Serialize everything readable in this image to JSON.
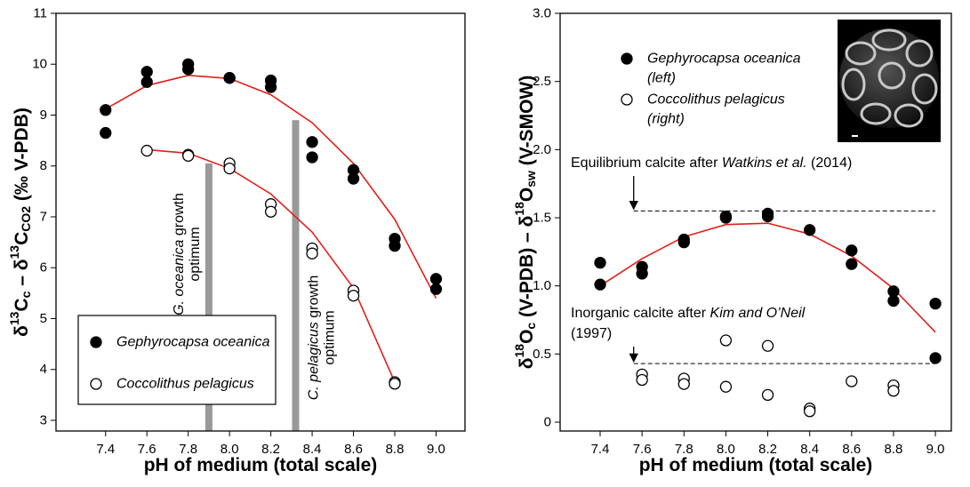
{
  "chart_data": [
    {
      "type": "scatter",
      "xlabel": "pH of medium (total scale)",
      "ylabel": [
        "δ",
        "13",
        "C",
        "c",
        " – δ",
        "13",
        "C",
        "CO2",
        " (‰ V-PDB)"
      ],
      "xlim": [
        7.16,
        9.14
      ],
      "ylim": [
        2.79,
        11
      ],
      "xticks": [
        7.4,
        7.6,
        7.8,
        {
          "value": 8,
          "label": "8.0"
        },
        8.2,
        8.4,
        8.6,
        8.8,
        {
          "value": 9,
          "label": "9.0"
        }
      ],
      "yticks": [
        3,
        4,
        5,
        6,
        7,
        8,
        9,
        10,
        11
      ],
      "series": [
        {
          "name": "Gephyrocapsa oceanica",
          "marker": "filled",
          "color": "#000000",
          "x": [
            7.4,
            7.4,
            7.6,
            7.6,
            7.8,
            7.8,
            8.0,
            8.0,
            8.2,
            8.2,
            8.4,
            8.4,
            8.6,
            8.6,
            8.8,
            8.8,
            9.0,
            9.0
          ],
          "values": [
            9.1,
            8.65,
            9.85,
            9.65,
            10.0,
            9.9,
            9.73,
            9.73,
            9.68,
            9.55,
            8.47,
            8.17,
            7.92,
            7.75,
            6.57,
            6.43,
            5.78,
            5.58
          ]
        },
        {
          "name": "Coccolithus pelagicus",
          "marker": "open",
          "color": "#000000",
          "x": [
            7.6,
            7.8,
            7.8,
            8.0,
            8.0,
            8.2,
            8.2,
            8.4,
            8.4,
            8.6,
            8.6,
            8.8,
            8.8
          ],
          "values": [
            8.3,
            8.22,
            8.2,
            8.05,
            7.95,
            7.25,
            7.1,
            6.38,
            6.28,
            5.55,
            5.45,
            3.75,
            3.72
          ]
        }
      ],
      "fits": [
        {
          "color": "#e0201b",
          "x": [
            7.4,
            7.6,
            7.8,
            8.0,
            8.2,
            8.4,
            8.6,
            8.8,
            9.0
          ],
          "values": [
            9.12,
            9.58,
            9.78,
            9.72,
            9.4,
            8.85,
            8.05,
            6.95,
            5.4
          ]
        },
        {
          "color": "#e0201b",
          "x": [
            7.6,
            7.8,
            8.0,
            8.2,
            8.4,
            8.6,
            8.8
          ],
          "values": [
            8.32,
            8.25,
            7.95,
            7.45,
            6.7,
            5.6,
            3.75
          ]
        }
      ],
      "bands": [
        {
          "x": 7.9,
          "top": 8.05,
          "color": "#999999",
          "label": [
            [
              {
                "text": "G. oceanica",
                "italic": true
              },
              {
                "text": " growth"
              }
            ],
            [
              {
                "text": "optimum"
              }
            ]
          ]
        },
        {
          "x": 8.32,
          "top": 8.9,
          "color": "#999999",
          "label": [
            [
              {
                "text": "C. pelagicus",
                "italic": true
              },
              {
                "text": " growth"
              }
            ],
            [
              {
                "text": "optimum"
              }
            ]
          ]
        }
      ],
      "legend": {
        "position": "lower left",
        "frame": true
      }
    },
    {
      "type": "scatter",
      "xlabel": "pH of medium (total scale)",
      "ylabel": [
        "δ",
        "18",
        "O",
        "c",
        " (V-PDB)  –  δ",
        "18",
        "O",
        "sw",
        " (V-SMOW)"
      ],
      "xlim": [
        7.209,
        9.076
      ],
      "ylim": [
        -0.065,
        3.0
      ],
      "xticks": [
        7.4,
        7.6,
        7.8,
        {
          "value": 8,
          "label": "8.0"
        },
        8.2,
        8.4,
        8.6,
        8.8,
        {
          "value": 9,
          "label": "9.0"
        }
      ],
      "yticks": [
        0,
        0.5,
        {
          "value": 1,
          "label": "1.0"
        },
        1.5,
        {
          "value": 2,
          "label": "2.0"
        },
        2.5,
        {
          "value": 3,
          "label": "3.0"
        }
      ],
      "series": [
        {
          "name": "Gephyrocapsa oceanica",
          "note": "(left)",
          "marker": "filled",
          "color": "#000000",
          "x": [
            7.4,
            7.4,
            7.6,
            7.6,
            7.8,
            7.8,
            8.0,
            8.0,
            8.2,
            8.2,
            8.4,
            8.6,
            8.6,
            8.8,
            8.8,
            9.0,
            9.0
          ],
          "values": [
            1.17,
            1.01,
            1.14,
            1.09,
            1.34,
            1.32,
            1.51,
            1.5,
            1.53,
            1.51,
            1.41,
            1.26,
            1.16,
            0.96,
            0.89,
            0.87,
            0.47
          ]
        },
        {
          "name": "Coccolithus pelagicus",
          "note": "(right)",
          "marker": "open",
          "color": "#000000",
          "x": [
            7.6,
            7.6,
            7.8,
            7.8,
            8.0,
            8.0,
            8.2,
            8.2,
            8.4,
            8.4,
            8.6,
            8.8,
            8.8
          ],
          "values": [
            0.35,
            0.31,
            0.32,
            0.28,
            0.6,
            0.26,
            0.56,
            0.2,
            0.1,
            0.08,
            0.3,
            0.27,
            0.23
          ]
        }
      ],
      "fits": [
        {
          "color": "#e0201b",
          "x": [
            7.4,
            7.6,
            7.8,
            8.0,
            8.2,
            8.4,
            8.6,
            8.8,
            9.0
          ],
          "values": [
            1.0,
            1.2,
            1.36,
            1.45,
            1.46,
            1.38,
            1.22,
            0.98,
            0.66
          ]
        }
      ],
      "hlines": [
        {
          "y": 1.55,
          "xlim": [
            7.56,
            9.0
          ],
          "label": [
            [
              {
                "text": "Equilibrium calcite after "
              },
              {
                "text": "Watkins et al.",
                "italic": true
              },
              {
                "text": " (2014)"
              }
            ]
          ]
        },
        {
          "y": 0.43,
          "xlim": [
            7.56,
            9.0
          ],
          "label": [
            [
              {
                "text": "Inorganic calcite after "
              },
              {
                "text": "Kim and O’Neil",
                "italic": true
              }
            ],
            [
              {
                "text": "(1997)"
              }
            ]
          ]
        }
      ],
      "legend": {
        "position": "upper left",
        "frame": false
      }
    }
  ]
}
